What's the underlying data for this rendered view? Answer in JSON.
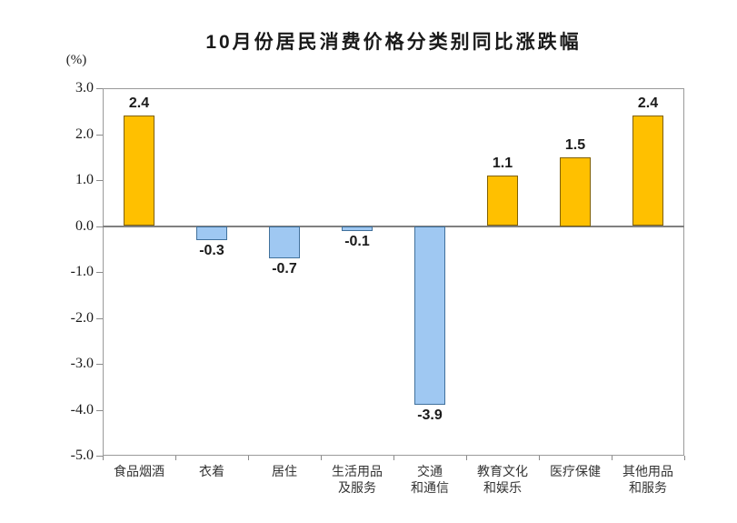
{
  "page": {
    "background": "#ffffff"
  },
  "chart_data": {
    "type": "bar",
    "title": "10月份居民消费价格分类别同比涨跌幅",
    "unit_label": "(%)",
    "categories": [
      "食品烟酒",
      "衣着",
      "居住",
      "生活用品\n及服务",
      "交通\n和通信",
      "教育文化\n和娱乐",
      "医疗保健",
      "其他用品\n和服务"
    ],
    "values": [
      2.4,
      -0.3,
      -0.7,
      -0.1,
      -3.9,
      1.1,
      1.5,
      2.4
    ],
    "value_labels": [
      "2.4",
      "-0.3",
      "-0.7",
      "-0.1",
      "-3.9",
      "1.1",
      "1.5",
      "2.4"
    ],
    "ylabel": "(%)",
    "xlabel": "",
    "ylim": [
      -5.0,
      3.0
    ],
    "ytick_step": 1.0,
    "ytick_labels": [
      "3.0",
      "2.0",
      "1.0",
      "0.0",
      "-1.0",
      "-2.0",
      "-3.0",
      "-4.0",
      "-5.0"
    ],
    "grid": false,
    "legend_position": "none",
    "colors": {
      "positive_fill": "#FFC000",
      "positive_border": "#806000",
      "negative_fill": "#9FC8F2",
      "negative_border": "#41719C",
      "frame": "#9a9a9a",
      "zero_line": "#808080",
      "tick": "#8a8a8a",
      "title_text": "#1a1a1a",
      "axis_text": "#1a1a1a",
      "category_text": "#333333"
    }
  }
}
